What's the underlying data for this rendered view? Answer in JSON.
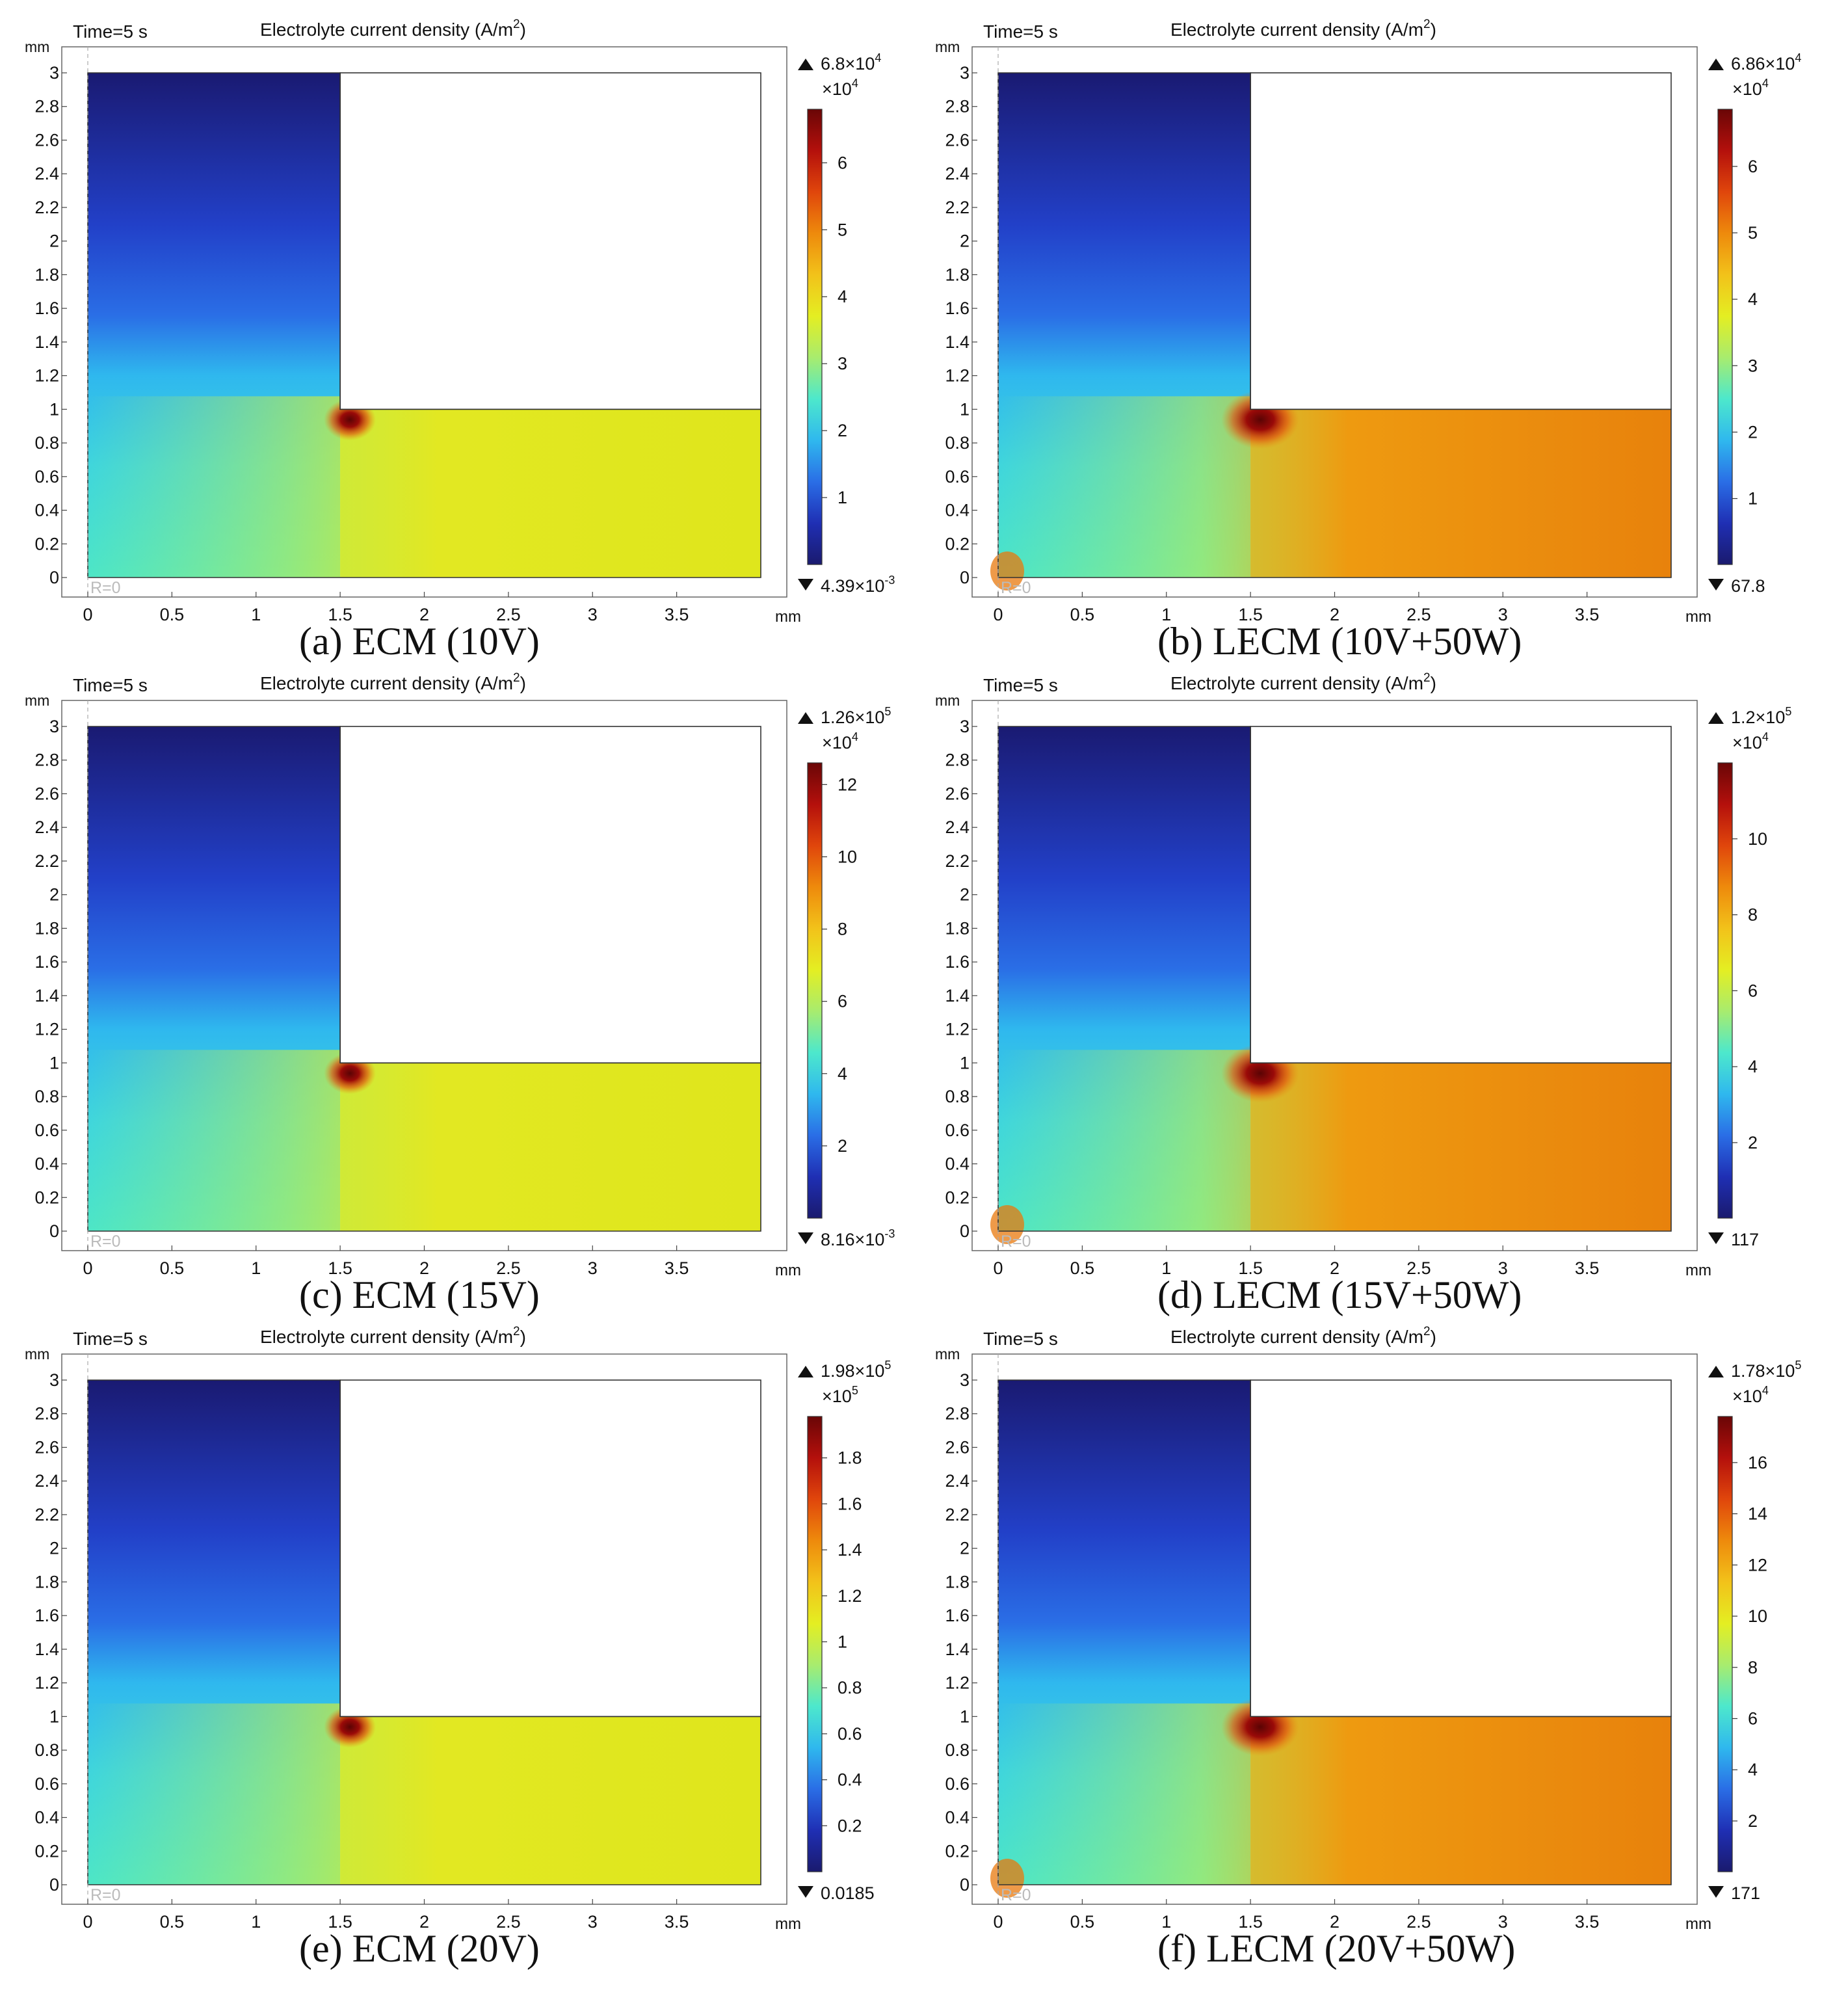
{
  "figure": {
    "panels": [
      {
        "caption": "(a) ECM (10V)",
        "time_label": "Time=5 s",
        "title_text": "Electrolyte current density (A/m",
        "title_sup": "2",
        "title_tail": ")",
        "unit_y": "mm",
        "unit_x": "mm",
        "axis_note": "R=0",
        "colorbar": {
          "max_label": "6.8×10",
          "max_sup": "4",
          "scale_label": "×10",
          "scale_sup": "4",
          "min_label": "4.39×10",
          "min_sup": "-3",
          "ticks": [
            "6",
            "5",
            "4",
            "3",
            "2",
            "1"
          ],
          "tick_values": [
            6,
            5,
            4,
            3,
            2,
            1
          ],
          "range": [
            4e-07,
            6.8
          ]
        },
        "variant": "ECM",
        "field_level": 0.5
      },
      {
        "caption": "(b) LECM (10V+50W)",
        "time_label": "Time=5 s",
        "title_text": "Electrolyte current density (A/m",
        "title_sup": "2",
        "title_tail": ")",
        "unit_y": "mm",
        "unit_x": "mm",
        "axis_note": "R=0",
        "colorbar": {
          "max_label": "6.86×10",
          "max_sup": "4",
          "scale_label": "×10",
          "scale_sup": "4",
          "min_label": "67.8",
          "min_sup": "",
          "ticks": [
            "6",
            "5",
            "4",
            "3",
            "2",
            "1"
          ],
          "tick_values": [
            6,
            5,
            4,
            3,
            2,
            1
          ],
          "range": [
            0.00678,
            6.86
          ]
        },
        "variant": "LECM",
        "field_level": 0.78
      },
      {
        "caption": "(c) ECM (15V)",
        "time_label": "Time=5 s",
        "title_text": "Electrolyte current density (A/m",
        "title_sup": "2",
        "title_tail": ")",
        "unit_y": "mm",
        "unit_x": "mm",
        "axis_note": "R=0",
        "colorbar": {
          "max_label": "1.26×10",
          "max_sup": "5",
          "scale_label": "×10",
          "scale_sup": "4",
          "min_label": "8.16×10",
          "min_sup": "-3",
          "ticks": [
            "12",
            "10",
            "8",
            "6",
            "4",
            "2"
          ],
          "tick_values": [
            12,
            10,
            8,
            6,
            4,
            2
          ],
          "range": [
            8e-07,
            12.6
          ]
        },
        "variant": "ECM",
        "field_level": 0.52
      },
      {
        "caption": "(d) LECM (15V+50W)",
        "time_label": "Time=5 s",
        "title_text": "Electrolyte current density (A/m",
        "title_sup": "2",
        "title_tail": ")",
        "unit_y": "mm",
        "unit_x": "mm",
        "axis_note": "R=0",
        "colorbar": {
          "max_label": "1.2×10",
          "max_sup": "5",
          "scale_label": "×10",
          "scale_sup": "4",
          "min_label": "117",
          "min_sup": "",
          "ticks": [
            "10",
            "8",
            "6",
            "4",
            "2"
          ],
          "tick_values": [
            10,
            8,
            6,
            4,
            2
          ],
          "range": [
            0.0117,
            12
          ]
        },
        "variant": "LECM",
        "field_level": 0.78
      },
      {
        "caption": "(e) ECM (20V)",
        "time_label": "Time=5 s",
        "title_text": "Electrolyte current density (A/m",
        "title_sup": "2",
        "title_tail": ")",
        "unit_y": "mm",
        "unit_x": "mm",
        "axis_note": "R=0",
        "colorbar": {
          "max_label": "1.98×10",
          "max_sup": "5",
          "scale_label": "×10",
          "scale_sup": "5",
          "min_label": "0.0185",
          "min_sup": "",
          "ticks": [
            "1.8",
            "1.6",
            "1.4",
            "1.2",
            "1",
            "0.8",
            "0.6",
            "0.4",
            "0.2"
          ],
          "tick_values": [
            1.8,
            1.6,
            1.4,
            1.2,
            1,
            0.8,
            0.6,
            0.4,
            0.2
          ],
          "range": [
            2e-07,
            1.98
          ]
        },
        "variant": "ECM",
        "field_level": 0.55
      },
      {
        "caption": "(f) LECM (20V+50W)",
        "time_label": "Time=5 s",
        "title_text": "Electrolyte current density (A/m",
        "title_sup": "2",
        "title_tail": ")",
        "unit_y": "mm",
        "unit_x": "mm",
        "axis_note": "R=0",
        "colorbar": {
          "max_label": "1.78×10",
          "max_sup": "5",
          "scale_label": "×10",
          "scale_sup": "4",
          "min_label": "171",
          "min_sup": "",
          "ticks": [
            "16",
            "14",
            "12",
            "10",
            "8",
            "6",
            "4",
            "2"
          ],
          "tick_values": [
            16,
            14,
            12,
            10,
            8,
            6,
            4,
            2
          ],
          "range": [
            0.0171,
            17.8
          ]
        },
        "variant": "LECM",
        "field_level": 0.76
      }
    ]
  },
  "chart_data": {
    "type": "heatmap",
    "x_ticks": [
      "0",
      "0.5",
      "1",
      "1.5",
      "2",
      "2.5",
      "3",
      "3.5"
    ],
    "y_ticks": [
      "0",
      "0.2",
      "0.4",
      "0.6",
      "0.8",
      "1",
      "1.2",
      "1.4",
      "1.6",
      "1.8",
      "2",
      "2.2",
      "2.4",
      "2.6",
      "2.8",
      "3"
    ],
    "xlim": [
      0,
      4
    ],
    "ylim": [
      0,
      3
    ],
    "electrode_corner": {
      "x": 1.5,
      "y": 1
    },
    "colormap": "rainbow"
  }
}
